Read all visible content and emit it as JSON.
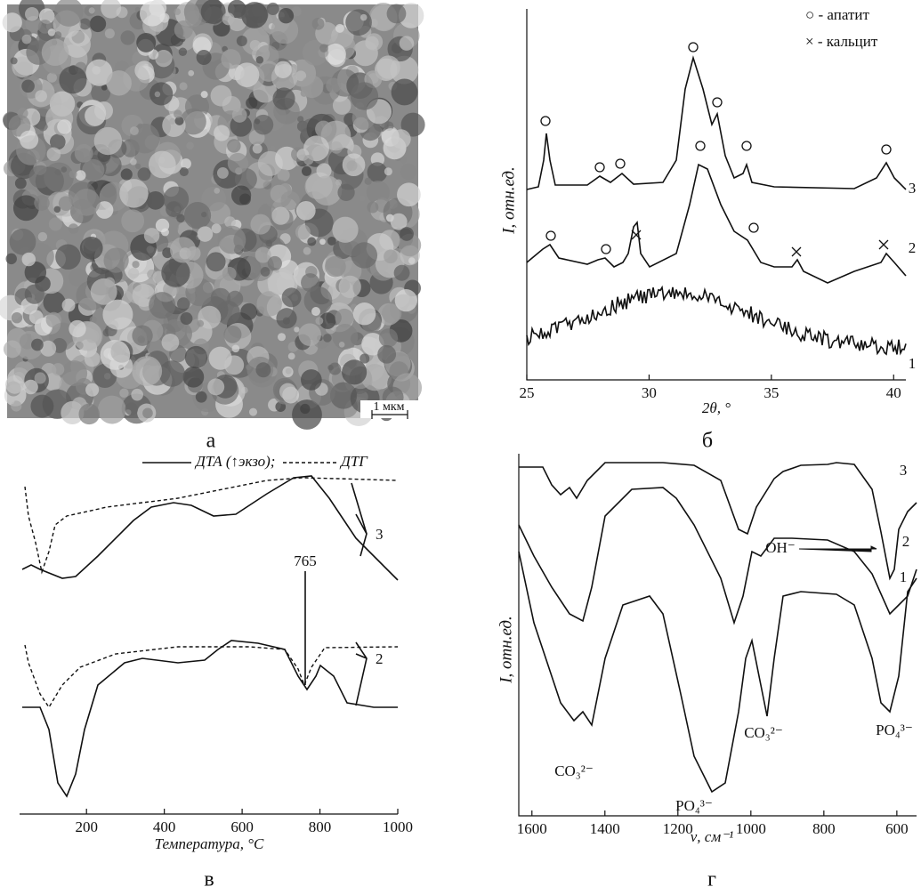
{
  "panels": [
    {
      "label": "а",
      "scale_bar": "1 мкм"
    },
    {
      "label": "б",
      "y_axis": "I, отн.ед.",
      "x_axis": "2θ, °",
      "xlim": [
        25,
        40.5
      ],
      "xticks": [
        25,
        30,
        35,
        40
      ],
      "legend": [
        "○ - апатит",
        "× - кальцит"
      ],
      "curve_labels": [
        "3",
        "2",
        "1"
      ]
    },
    {
      "label": "в",
      "x_axis": "Температура, °C",
      "xlim": [
        28,
        1000
      ],
      "xticks": [
        200,
        400,
        600,
        800,
        1000
      ],
      "legend": [
        "ДТА (↑экзо);",
        "ДТГ"
      ],
      "curve_labels": [
        "3",
        "2"
      ],
      "annotation": "765"
    },
    {
      "label": "г",
      "y_axis": "I, отн.ед.",
      "x_axis": "ν, см⁻¹",
      "xlim": [
        1636,
        546
      ],
      "xticks": [
        1600,
        1400,
        1200,
        1000,
        800,
        600
      ],
      "curve_labels": [
        "3",
        "2",
        "1"
      ],
      "annotations": [
        "OH⁻",
        "CO₃²⁻",
        "PO₄³⁻",
        "CO₃²⁻",
        "PO₄³⁻"
      ]
    }
  ]
}
